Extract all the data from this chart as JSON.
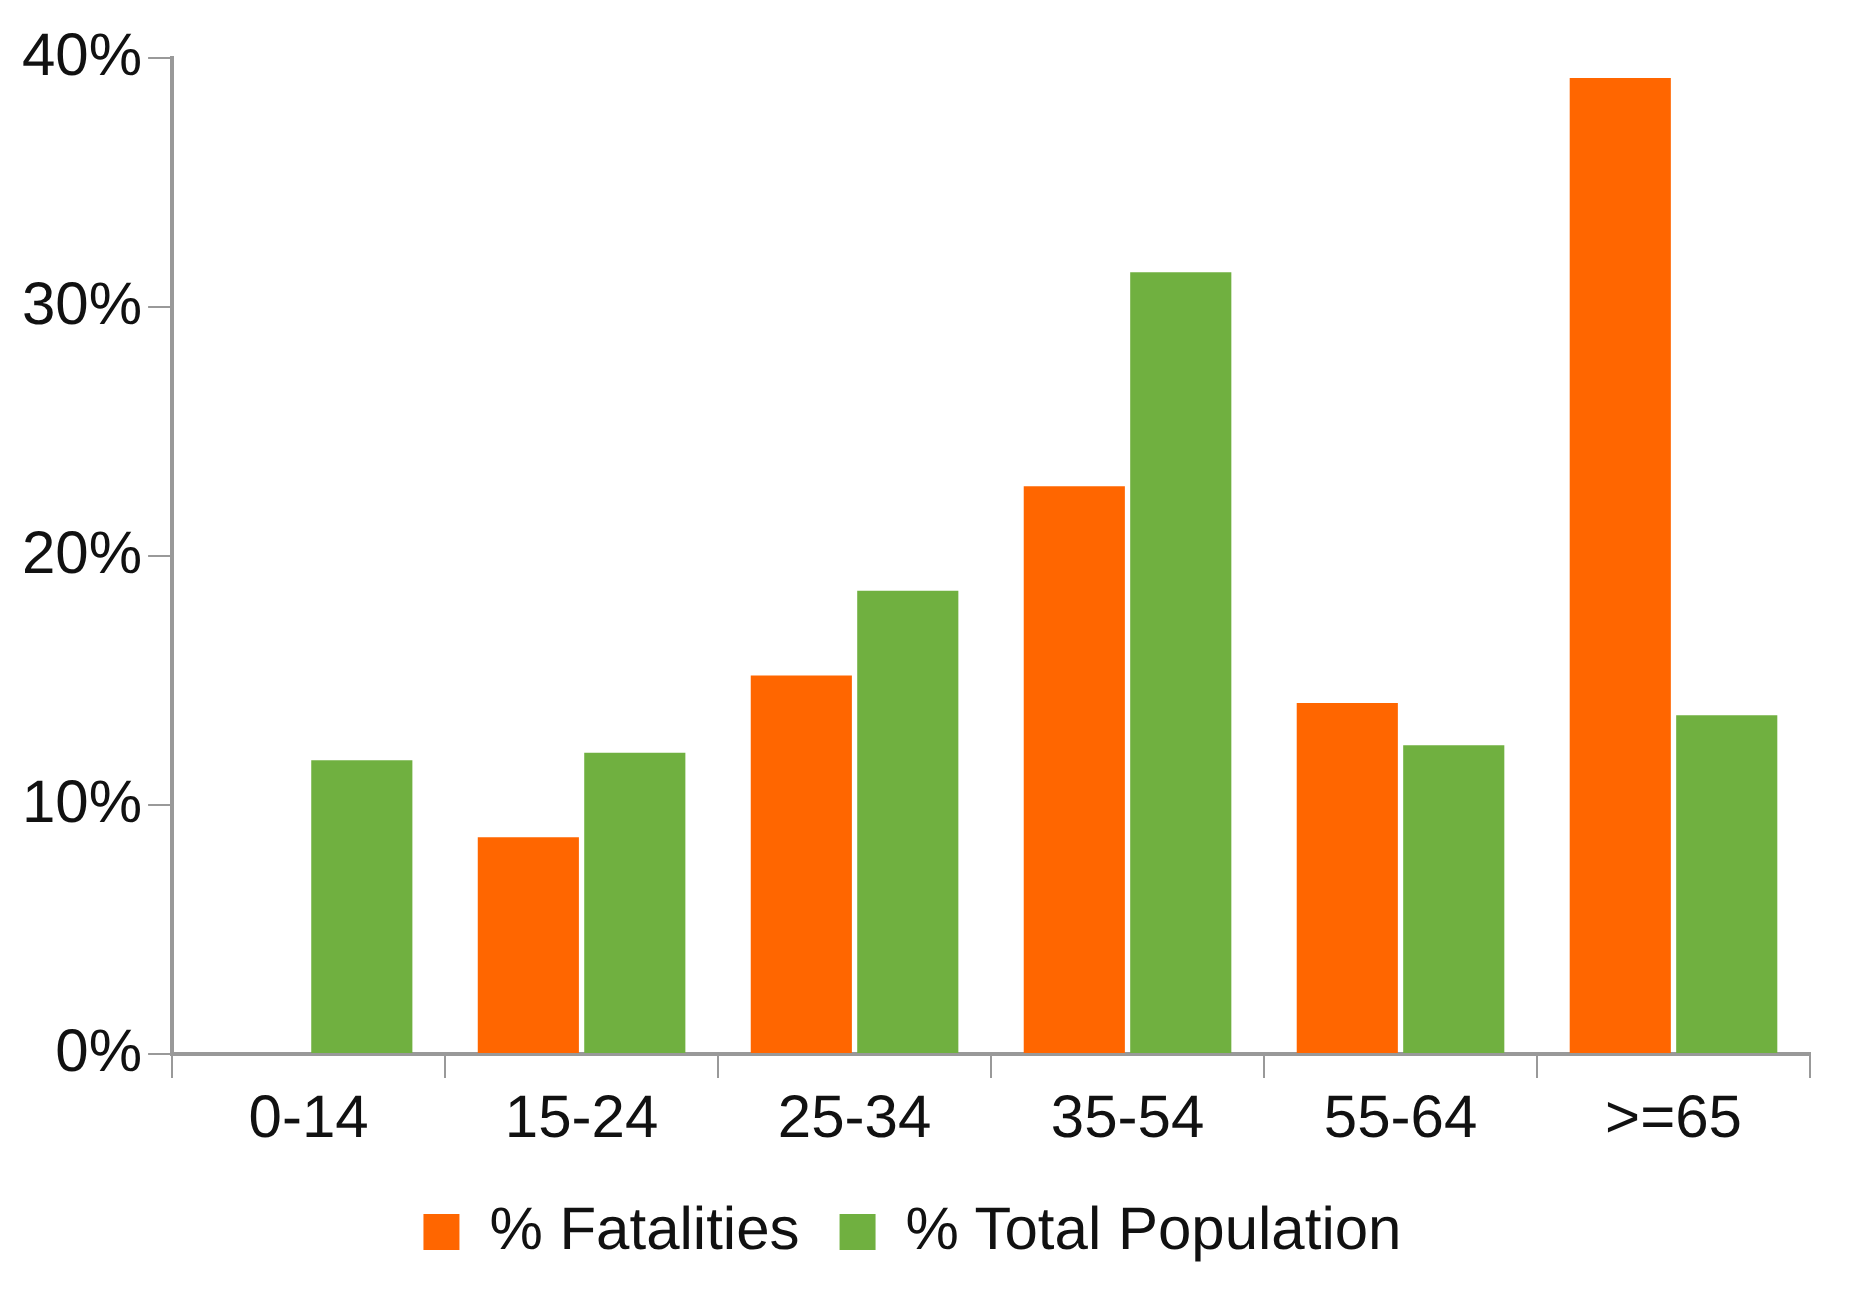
{
  "chart_data": {
    "type": "bar",
    "categories": [
      "0-14",
      "15-24",
      "25-34",
      "35-54",
      "55-64",
      ">=65"
    ],
    "series": [
      {
        "name": "% Fatalities",
        "color": "#ff6600",
        "values": [
          0,
          8.7,
          15.2,
          22.8,
          14.1,
          39.2
        ]
      },
      {
        "name": "% Total Population",
        "color": "#70b040",
        "values": [
          11.8,
          12.1,
          18.6,
          31.4,
          12.4,
          13.6
        ]
      }
    ],
    "ylim": [
      0,
      40
    ],
    "yticks": [
      {
        "value": 0,
        "label": "0%"
      },
      {
        "value": 10,
        "label": "10%"
      },
      {
        "value": 20,
        "label": "20%"
      },
      {
        "value": 30,
        "label": "30%"
      },
      {
        "value": 40,
        "label": "40%"
      }
    ],
    "grid": false,
    "legend": "bottom"
  }
}
